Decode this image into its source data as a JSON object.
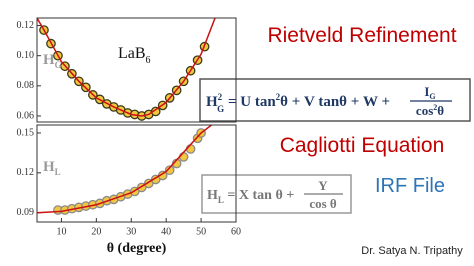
{
  "chart_data": [
    {
      "type": "scatter",
      "annotation": "LaB",
      "annotation_sub": "6",
      "ylabel": "H",
      "ylabel_sub": "G",
      "xlim": [
        3,
        60
      ],
      "ylim": [
        0.056,
        0.125
      ],
      "yticks": [
        0.06,
        0.08,
        {
          "value": 0.1,
          "label": "0.10"
        },
        0.12
      ],
      "series": [
        {
          "type": "scatter",
          "color": "#f3c640",
          "edge": "#3a3a1a",
          "x": [
            5,
            7,
            9,
            11,
            13,
            15,
            17,
            19,
            21,
            23,
            25,
            27,
            29,
            31,
            33,
            35,
            37,
            39,
            41,
            43,
            45,
            47,
            49,
            51
          ],
          "values": [
            0.117,
            0.108,
            0.1,
            0.093,
            0.088,
            0.083,
            0.079,
            0.074,
            0.071,
            0.068,
            0.066,
            0.064,
            0.062,
            0.061,
            0.06,
            0.061,
            0.063,
            0.067,
            0.072,
            0.077,
            0.083,
            0.09,
            0.097,
            0.106
          ]
        },
        {
          "type": "line",
          "color": "#cc1111",
          "x": [
            3,
            5,
            10,
            15,
            20,
            25,
            30,
            33,
            35,
            40,
            45,
            50,
            54
          ],
          "values": [
            0.125,
            0.117,
            0.096,
            0.083,
            0.072,
            0.066,
            0.061,
            0.06,
            0.061,
            0.069,
            0.083,
            0.101,
            0.125
          ]
        }
      ]
    },
    {
      "type": "scatter",
      "ylabel": "H",
      "ylabel_sub": "L",
      "xlabel": "θ (degree)",
      "xlim": [
        3,
        60
      ],
      "ylim": [
        0.083,
        0.156
      ],
      "xticks": [
        10,
        20,
        30,
        40,
        50,
        60
      ],
      "yticks": [
        0.09,
        0.12,
        0.15
      ],
      "series": [
        {
          "type": "scatter",
          "color": "#f3c640",
          "edge": "#8a8a8a",
          "x": [
            9,
            11,
            13,
            15,
            17,
            19,
            21,
            23,
            25,
            27,
            29,
            31,
            33,
            35,
            37,
            39,
            41,
            43,
            45,
            47,
            49,
            50
          ],
          "values": [
            0.092,
            0.092,
            0.093,
            0.094,
            0.095,
            0.096,
            0.097,
            0.099,
            0.1,
            0.102,
            0.104,
            0.106,
            0.109,
            0.112,
            0.115,
            0.118,
            0.122,
            0.127,
            0.132,
            0.138,
            0.146,
            0.15
          ]
        },
        {
          "type": "line",
          "color": "#cc1111",
          "x": [
            3,
            10,
            20,
            30,
            40,
            50,
            53
          ],
          "values": [
            0.09,
            0.091,
            0.096,
            0.105,
            0.121,
            0.15,
            0.156
          ]
        }
      ]
    }
  ],
  "title": "Rietveld Refinement",
  "subtitle": "Cagliotti Equation",
  "label": "IRF File",
  "author": "Dr. Satya N. Tripathy",
  "formulas": [
    {
      "lhs": "H",
      "lhs_sub": "G",
      "lhs_sup": "2",
      "rhs": " = U tan",
      "rhs_sup": "2",
      "rhs2": "θ + V tanθ + W + ",
      "num": "I",
      "num_sub": "G",
      "den": "cos",
      "den_sup": "2",
      "den2": "θ"
    },
    {
      "lhs": "H",
      "lhs_sub": "L",
      "rhs": " = X tan θ + ",
      "num": "Y",
      "den": "cos θ"
    }
  ]
}
